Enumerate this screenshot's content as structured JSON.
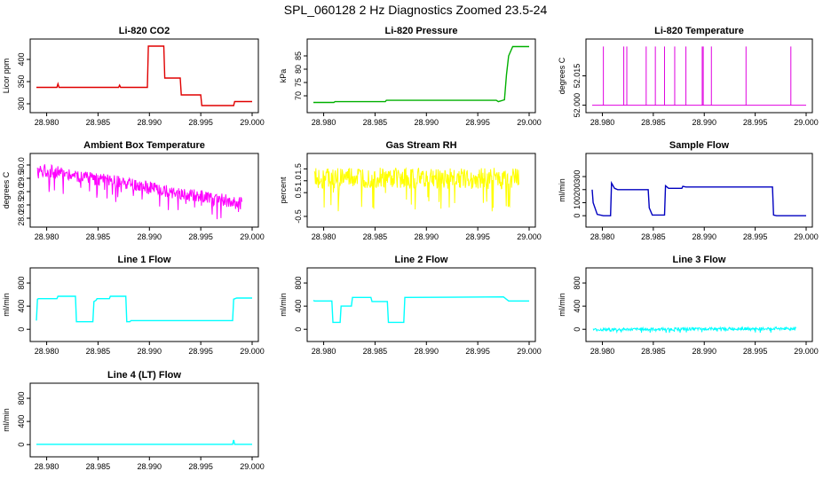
{
  "page": {
    "title": "SPL_060128  2 Hz Diagnostics Zoomed 23.5-24"
  },
  "chart_data": [
    {
      "type": "line",
      "title": "Li-820 CO2",
      "ylabel": "Licor ppm",
      "color": "#e00000",
      "xlim": [
        28.979,
        29.0
      ],
      "ylim": [
        288,
        438
      ],
      "xticks": [
        "28.980",
        "28.985",
        "28.990",
        "28.995",
        "29.000"
      ],
      "yticks": [
        300,
        350,
        400
      ],
      "series": [
        {
          "x": [
            28.979,
            28.981,
            28.9811,
            28.9812,
            28.987,
            28.9871,
            28.9872,
            28.9898,
            28.9899,
            28.9914,
            28.9915,
            28.993,
            28.9931,
            28.995,
            28.9951,
            28.9982,
            28.9983,
            29.0
          ],
          "y": [
            337,
            337,
            345,
            337,
            337,
            342,
            337,
            337,
            430,
            430,
            358,
            358,
            320,
            320,
            296,
            296,
            305,
            305
          ]
        }
      ]
    },
    {
      "type": "line",
      "title": "Li-820 Pressure",
      "ylabel": "kPa",
      "color": "#00b000",
      "xlim": [
        28.979,
        29.0
      ],
      "ylim": [
        65,
        90
      ],
      "xticks": [
        "28.980",
        "28.985",
        "28.990",
        "28.995",
        "29.000"
      ],
      "yticks": [
        70,
        75,
        80,
        85
      ],
      "series": [
        {
          "x": [
            28.979,
            28.981,
            28.9811,
            28.986,
            28.9861,
            28.9968,
            28.997,
            28.9976,
            28.9978,
            28.998,
            28.9984,
            29.0
          ],
          "y": [
            67.5,
            67.5,
            67.8,
            67.8,
            68.3,
            68.3,
            67.8,
            68.5,
            78,
            85,
            88.5,
            88.5
          ]
        }
      ]
    },
    {
      "type": "line",
      "title": "Li-820 Temperature",
      "ylabel": "degrees C",
      "color": "#e000e0",
      "xlim": [
        28.979,
        29.0
      ],
      "ylim": [
        51.998,
        52.032
      ],
      "xticks": [
        "28.980",
        "28.985",
        "28.990",
        "28.995",
        "29.000"
      ],
      "yticks": [
        "52.000",
        "52.015"
      ],
      "base": 52.0,
      "spike_top": 52.03,
      "spikes": [
        28.9801,
        28.9821,
        28.9824,
        28.9843,
        28.9852,
        28.9861,
        28.9871,
        28.9882,
        28.9898,
        28.9899,
        28.9907,
        28.9941,
        28.9985
      ]
    },
    {
      "type": "line",
      "title": "Ambient Box Temperature",
      "ylabel": "degrees C",
      "color": "#ff00ff",
      "xlim": [
        28.979,
        29.0
      ],
      "ylim": [
        27.8,
        30.3
      ],
      "xticks": [
        "28.980",
        "28.985",
        "28.990",
        "28.995",
        "29.000"
      ],
      "yticks": [
        "28.0",
        "28.5",
        "29.0",
        "29.5",
        "30.0"
      ],
      "noise": {
        "start": 29.85,
        "end": 28.55,
        "amp": 0.25,
        "min": 27.9
      }
    },
    {
      "type": "line",
      "title": "Gas Stream RH",
      "ylabel": "percent",
      "color": "#ffff00",
      "xlim": [
        28.979,
        29.0
      ],
      "ylim": [
        -0.8,
        2.0
      ],
      "xticks": [
        "28.980",
        "28.985",
        "28.990",
        "28.995",
        "29.000"
      ],
      "yticks": [
        "-0.5",
        "0.5",
        "1.0",
        "1.5"
      ],
      "noise": {
        "start": 1.1,
        "end": 1.1,
        "amp": 0.45,
        "min": -0.7,
        "max": 1.85
      }
    },
    {
      "type": "line",
      "title": "Sample Flow",
      "ylabel": "ml/min",
      "color": "#0000c0",
      "xlim": [
        28.979,
        29.0
      ],
      "ylim": [
        -60,
        450
      ],
      "xticks": [
        "28.980",
        "28.985",
        "28.990",
        "28.995",
        "29.000"
      ],
      "yticks": [
        0,
        100,
        200,
        300
      ],
      "series": [
        {
          "x": [
            28.979,
            28.9791,
            28.9795,
            28.9801,
            28.9808,
            28.9809,
            28.9812,
            28.9815,
            28.9845,
            28.9846,
            28.9849,
            28.9861,
            28.9862,
            28.9865,
            28.9878,
            28.9879,
            28.9882,
            28.9967,
            28.9968,
            28.9971,
            29.0
          ],
          "y": [
            200,
            100,
            10,
            0,
            0,
            250,
            210,
            200,
            200,
            60,
            5,
            5,
            230,
            210,
            210,
            225,
            220,
            220,
            5,
            0,
            0
          ]
        }
      ]
    },
    {
      "type": "line",
      "title": "Line 1 Flow",
      "ylabel": "ml/min",
      "color": "#00ffff",
      "xlim": [
        28.979,
        29.0
      ],
      "ylim": [
        -150,
        1000
      ],
      "xticks": [
        "28.980",
        "28.985",
        "28.990",
        "28.995",
        "29.000"
      ],
      "yticks": [
        0,
        400,
        800
      ],
      "series": [
        {
          "x": [
            28.979,
            28.9791,
            28.9792,
            28.981,
            28.9811,
            28.9828,
            28.9829,
            28.9845,
            28.9846,
            28.9848,
            28.9849,
            28.9861,
            28.9862,
            28.9877,
            28.9878,
            28.9881,
            28.9882,
            28.9981,
            28.9982,
            28.9985,
            29.0
          ],
          "y": [
            150,
            520,
            530,
            530,
            570,
            570,
            130,
            130,
            480,
            500,
            530,
            530,
            570,
            570,
            130,
            130,
            150,
            150,
            520,
            540,
            540
          ]
        }
      ]
    },
    {
      "type": "line",
      "title": "Line 2 Flow",
      "ylabel": "ml/min",
      "color": "#00ffff",
      "xlim": [
        28.979,
        29.0
      ],
      "ylim": [
        -150,
        1000
      ],
      "xticks": [
        "28.980",
        "28.985",
        "28.990",
        "28.995",
        "29.000"
      ],
      "yticks": [
        0,
        400,
        800
      ],
      "series": [
        {
          "x": [
            28.979,
            28.9791,
            28.9808,
            28.9809,
            28.9816,
            28.9817,
            28.9827,
            28.9828,
            28.9846,
            28.9847,
            28.9862,
            28.9863,
            28.9878,
            28.9879,
            28.9975,
            28.998,
            29.0
          ],
          "y": [
            500,
            490,
            490,
            120,
            120,
            400,
            400,
            550,
            550,
            480,
            480,
            120,
            120,
            550,
            560,
            490,
            490
          ]
        }
      ]
    },
    {
      "type": "line",
      "title": "Line 3 Flow",
      "ylabel": "ml/min",
      "color": "#00ffff",
      "xlim": [
        28.979,
        29.0
      ],
      "ylim": [
        -150,
        1000
      ],
      "xticks": [
        "28.980",
        "28.985",
        "28.990",
        "28.995",
        "29.000"
      ],
      "yticks": [
        0,
        400,
        800
      ],
      "noise": {
        "start": -5,
        "end": 15,
        "amp": 25,
        "min": -60
      }
    },
    {
      "type": "line",
      "title": "Line 4 (LT) Flow",
      "ylabel": "ml/min",
      "color": "#00ffff",
      "xlim": [
        28.979,
        29.0
      ],
      "ylim": [
        -150,
        1000
      ],
      "xticks": [
        "28.980",
        "28.985",
        "28.990",
        "28.995",
        "29.000"
      ],
      "yticks": [
        0,
        400,
        800
      ],
      "series": [
        {
          "x": [
            28.979,
            28.9981,
            28.9982,
            28.9983,
            28.9984,
            29.0
          ],
          "y": [
            5,
            5,
            80,
            5,
            5,
            5
          ]
        }
      ]
    }
  ]
}
